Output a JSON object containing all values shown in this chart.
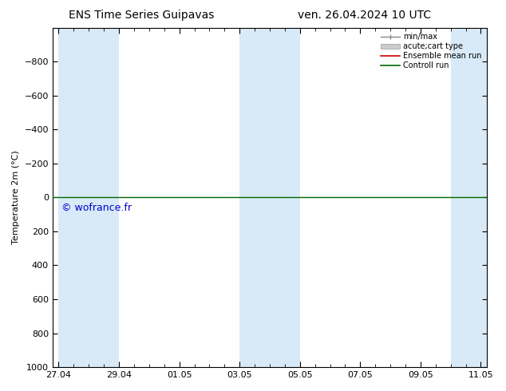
{
  "title_left": "ENS Time Series Guipavas",
  "title_right": "ven. 26.04.2024 10 UTC",
  "ylabel": "Temperature 2m (°C)",
  "ylim": [
    -1000,
    1000
  ],
  "ylim_display": [
    -1000,
    1000
  ],
  "yticks": [
    -800,
    -600,
    -400,
    -200,
    0,
    200,
    400,
    600,
    800,
    1000
  ],
  "y_inverted": true,
  "xtick_labels": [
    "27.04",
    "29.04",
    "01.05",
    "03.05",
    "05.05",
    "07.05",
    "09.05",
    "11.05"
  ],
  "xtick_positions": [
    0,
    2,
    4,
    6,
    8,
    10,
    12,
    14
  ],
  "x_min": -0.2,
  "x_max": 14.2,
  "shaded_bands": [
    {
      "start": 0,
      "end": 2
    },
    {
      "start": 6,
      "end": 8
    },
    {
      "start": 13,
      "end": 14.2
    }
  ],
  "shaded_color": "#d8eaf8",
  "line_y": 0,
  "green_color": "#006600",
  "red_color": "#cc0000",
  "watermark": "© wofrance.fr",
  "watermark_color": "#0000cc",
  "watermark_fontsize": 9,
  "legend_labels": [
    "min/max",
    "acute;cart type",
    "Ensemble mean run",
    "Controll run"
  ],
  "background_color": "#ffffff",
  "title_fontsize": 10,
  "ylabel_fontsize": 8,
  "tick_fontsize": 8
}
